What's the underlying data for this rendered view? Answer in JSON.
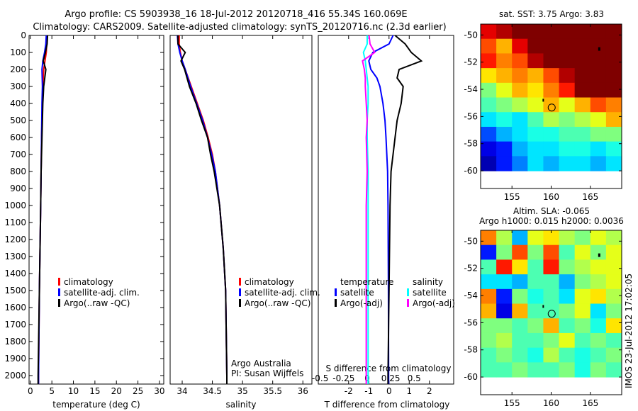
{
  "title_line1": "Argo profile: CS 5903938_16 18-Jul-2012 20120718_416 55.34S 160.069E",
  "title_line2": "Climatology: CARS2009. Satellite-adjusted climatology: synTS_20120716.nc (2.3d earlier)",
  "footer_stamp": "IMOS 23-Jul-2012 17:02:05",
  "colors": {
    "climatology": "#ff0000",
    "satellite": "#0000ff",
    "argo": "#000000",
    "sal_satellite": "#00ffff",
    "sal_argo": "#ff00ff"
  },
  "chart_data": [
    {
      "type": "line",
      "name": "temperature",
      "xlabel": "temperature (deg C)",
      "ylabel": "",
      "xlim": [
        -0.3,
        31
      ],
      "ylim": [
        2050,
        0
      ],
      "xticks": [
        "0",
        "5",
        "10",
        "15",
        "20",
        "25",
        "30"
      ],
      "yticks": [
        "0",
        "100",
        "200",
        "300",
        "400",
        "500",
        "600",
        "700",
        "800",
        "900",
        "1000",
        "1100",
        "1200",
        "1300",
        "1400",
        "1500",
        "1600",
        "1700",
        "1800",
        "1900",
        "2000"
      ],
      "legend": [
        "climatology",
        "satellite-adj. clim.",
        "Argo(..raw -QC)"
      ],
      "depth": [
        0,
        50,
        100,
        150,
        200,
        300,
        400,
        600,
        800,
        1000,
        1500,
        2000,
        2050
      ],
      "series": [
        {
          "name": "climatology",
          "values": [
            3.9,
            3.8,
            3.7,
            3.4,
            3.1,
            2.9,
            2.8,
            2.6,
            2.5,
            2.4,
            2.1,
            1.9,
            1.9
          ]
        },
        {
          "name": "satellite-adj. clim.",
          "values": [
            3.7,
            3.6,
            3.3,
            2.9,
            2.7,
            2.8,
            2.7,
            2.6,
            2.5,
            2.4,
            2.1,
            1.9,
            1.9
          ]
        },
        {
          "name": "Argo(..raw -QC)",
          "values": [
            4.0,
            3.9,
            3.5,
            3.0,
            3.6,
            3.1,
            2.9,
            2.7,
            2.5,
            2.4,
            2.1,
            1.8,
            1.8
          ]
        }
      ]
    },
    {
      "type": "line",
      "name": "salinity",
      "xlabel": "salinity",
      "xlim": [
        33.8,
        36.15
      ],
      "ylim": [
        2050,
        0
      ],
      "xticks": [
        "34",
        "34.5",
        "35",
        "35.5",
        "36"
      ],
      "legend": [
        "climatology",
        "satellite-adj. clim.",
        "Argo(..raw -QC)"
      ],
      "annotation": [
        "Argo Australia",
        "PI: Susan Wijffels"
      ],
      "depth": [
        0,
        50,
        100,
        150,
        200,
        300,
        400,
        500,
        600,
        700,
        800,
        1000,
        1250,
        1500,
        2000,
        2050
      ],
      "series": [
        {
          "name": "climatology",
          "values": [
            33.95,
            33.95,
            33.97,
            34.0,
            34.05,
            34.15,
            34.25,
            34.35,
            34.43,
            34.5,
            34.55,
            34.62,
            34.68,
            34.72,
            34.74,
            34.74
          ]
        },
        {
          "name": "satellite-adj. clim.",
          "values": [
            33.92,
            33.93,
            33.96,
            34.0,
            34.05,
            34.14,
            34.24,
            34.34,
            34.42,
            34.49,
            34.55,
            34.62,
            34.68,
            34.72,
            34.74,
            34.74
          ]
        },
        {
          "name": "Argo(..raw -QC)",
          "values": [
            33.93,
            33.93,
            34.05,
            33.98,
            34.04,
            34.12,
            34.23,
            34.32,
            34.42,
            34.47,
            34.53,
            34.62,
            34.68,
            34.72,
            34.74,
            34.74
          ]
        }
      ]
    },
    {
      "type": "line",
      "name": "differences",
      "xlabel": "T difference from climatology",
      "x2label": "S difference from climatology",
      "xlim": [
        -3.5,
        3.2
      ],
      "x2lim": [
        -0.52,
        0.92
      ],
      "ylim": [
        2050,
        0
      ],
      "xticks": [
        "-2",
        "-1",
        "0",
        "1",
        "2"
      ],
      "x2ticks": [
        "-0.5",
        "-0.25",
        "0",
        "0.25",
        "0.5"
      ],
      "legend_temperature": [
        "temperature",
        "satellite",
        "Argo(-adj)"
      ],
      "legend_salinity": [
        "salinity",
        "satellite",
        "Argo(-adj)"
      ],
      "depth": [
        0,
        50,
        100,
        150,
        200,
        250,
        300,
        400,
        500,
        600,
        800,
        1000,
        1500,
        2000,
        2050
      ],
      "series": [
        {
          "name": "T satellite",
          "axis": "T",
          "values": [
            0.2,
            0.0,
            -0.8,
            -1.0,
            -0.9,
            -0.6,
            -0.45,
            -0.3,
            -0.2,
            -0.15,
            -0.07,
            -0.05,
            -0.03,
            -0.02,
            -0.02
          ]
        },
        {
          "name": "T Argo(-adj)",
          "axis": "T",
          "values": [
            0.3,
            0.8,
            1.1,
            1.6,
            0.5,
            0.4,
            0.7,
            0.6,
            0.4,
            0.3,
            0.1,
            0.05,
            0.0,
            -0.05,
            -0.05
          ]
        },
        {
          "name": "S satellite",
          "axis": "S",
          "values": [
            0.0,
            0.0,
            -0.04,
            -0.02,
            -0.01,
            0.0,
            0.01,
            0.01,
            0.0,
            0.0,
            0.01,
            0.01,
            0.01,
            0.01,
            0.01
          ]
        },
        {
          "name": "S Argo(-adj)",
          "axis": "S",
          "values": [
            0.02,
            0.03,
            0.08,
            -0.05,
            -0.03,
            -0.02,
            -0.02,
            -0.01,
            0.0,
            -0.01,
            0.0,
            -0.01,
            -0.01,
            -0.01,
            -0.01
          ]
        }
      ]
    },
    {
      "type": "heatmap",
      "name": "sst-map",
      "title": "sat. SST: 3.75 Argo: 3.83",
      "xlim": [
        151,
        169
      ],
      "ylim": [
        -61.3,
        -49.2
      ],
      "xticks": [
        "155",
        "160",
        "165"
      ],
      "yticks": [
        "-50",
        "-52",
        "-54",
        "-56",
        "-58",
        "-60"
      ],
      "grid": [
        [
          0.9,
          0.95,
          1,
          1,
          1,
          1,
          1,
          1,
          1
        ],
        [
          0.8,
          0.7,
          0.9,
          1,
          1,
          1,
          1,
          1,
          1
        ],
        [
          0.85,
          0.75,
          0.8,
          0.95,
          1,
          1,
          1,
          1,
          1
        ],
        [
          0.65,
          0.7,
          0.75,
          0.7,
          0.8,
          0.95,
          1,
          1,
          1
        ],
        [
          0.5,
          0.6,
          0.7,
          0.65,
          0.75,
          0.85,
          1,
          1,
          1
        ],
        [
          0.45,
          0.5,
          0.55,
          0.6,
          0.7,
          0.6,
          0.7,
          0.8,
          0.75
        ],
        [
          0.35,
          0.4,
          0.35,
          0.45,
          0.55,
          0.5,
          0.55,
          0.6,
          0.7
        ],
        [
          0.2,
          0.3,
          0.35,
          0.4,
          0.4,
          0.45,
          0.45,
          0.5,
          0.5
        ],
        [
          0.1,
          0.15,
          0.3,
          0.35,
          0.35,
          0.4,
          0.4,
          0.35,
          0.4
        ],
        [
          0.05,
          0.15,
          0.25,
          0.35,
          0.3,
          0.35,
          0.35,
          0.3,
          0.35
        ]
      ],
      "argo_position": [
        160.069,
        -55.34
      ]
    },
    {
      "type": "heatmap",
      "name": "sla-map",
      "title": "Altim. SLA: -0.065",
      "subtitle": "Argo h1000: 0.015 h2000: 0.0036",
      "xlim": [
        151,
        169
      ],
      "ylim": [
        -61.3,
        -49.2
      ],
      "xticks": [
        "155",
        "160",
        "165"
      ],
      "yticks": [
        "-50",
        "-52",
        "-54",
        "-56",
        "-58",
        "-60"
      ],
      "grid": [
        [
          0.75,
          0.55,
          0.3,
          0.6,
          0.65,
          0.55,
          0.5,
          0.6,
          0.55
        ],
        [
          0.15,
          0.5,
          0.8,
          0.5,
          0.8,
          0.45,
          0.6,
          0.5,
          0.6
        ],
        [
          0.45,
          0.85,
          0.65,
          0.45,
          0.85,
          0.5,
          0.55,
          0.6,
          0.6
        ],
        [
          0.35,
          0.35,
          0.3,
          0.45,
          0.45,
          0.3,
          0.5,
          0.55,
          0.6
        ],
        [
          0.75,
          0.15,
          0.5,
          0.4,
          0.45,
          0.35,
          0.6,
          0.65,
          0.55
        ],
        [
          0.7,
          0.1,
          0.7,
          0.45,
          0.45,
          0.5,
          0.6,
          0.35,
          0.5
        ],
        [
          0.5,
          0.5,
          0.45,
          0.5,
          0.7,
          0.45,
          0.5,
          0.4,
          0.65
        ],
        [
          0.5,
          0.55,
          0.45,
          0.45,
          0.5,
          0.6,
          0.45,
          0.5,
          0.45
        ],
        [
          0.45,
          0.5,
          0.45,
          0.4,
          0.55,
          0.45,
          0.4,
          0.45,
          0.5
        ],
        [
          0.45,
          0.45,
          0.5,
          0.45,
          0.45,
          0.5,
          0.4,
          0.5,
          0.45
        ]
      ],
      "argo_position": [
        160.069,
        -55.34
      ]
    }
  ]
}
